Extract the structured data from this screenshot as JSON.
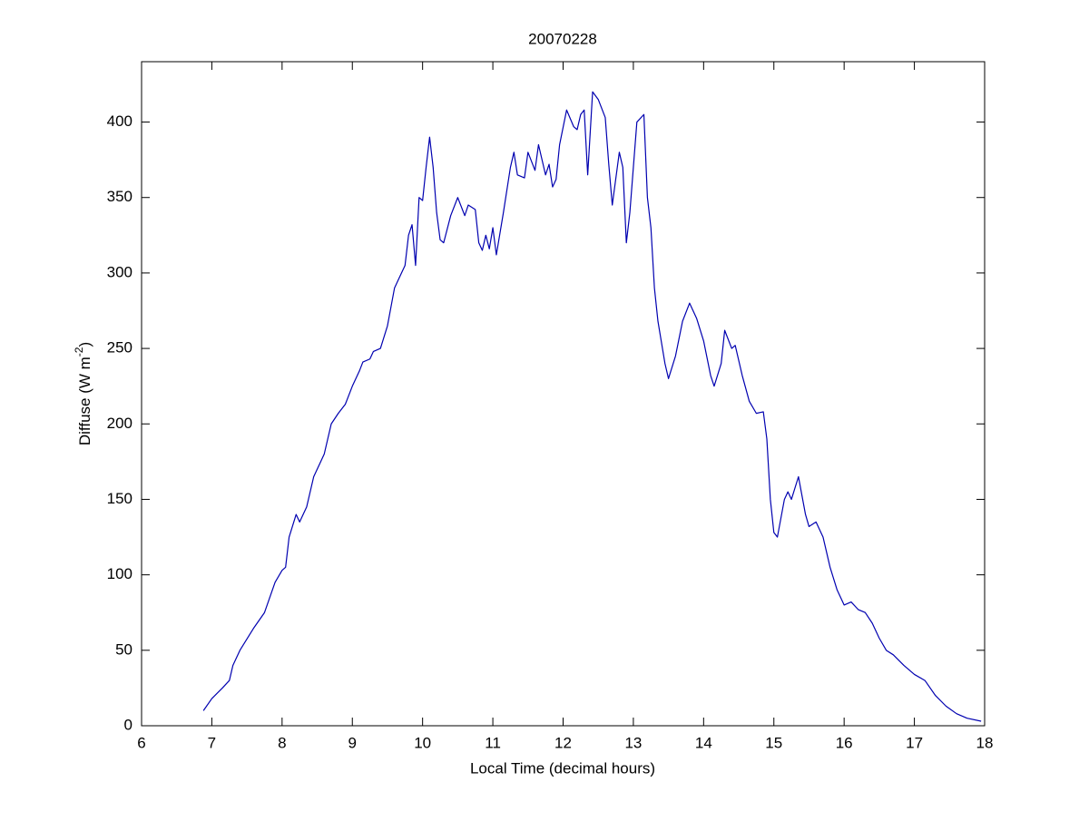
{
  "chart_data": {
    "type": "line",
    "title": "20070228",
    "xlabel": "Local Time (decimal hours)",
    "ylabel": {
      "text": "Diffuse (W m",
      "sup": "-2",
      "close": ")"
    },
    "xlim": [
      6,
      18
    ],
    "xticks": [
      6,
      7,
      8,
      9,
      10,
      11,
      12,
      13,
      14,
      15,
      16,
      17,
      18
    ],
    "ylim": [
      0,
      440
    ],
    "yticks": [
      0,
      50,
      100,
      150,
      200,
      250,
      300,
      350,
      400
    ],
    "grid": false,
    "series": [
      {
        "color": "#0000b0",
        "x": [
          6.88,
          7.0,
          7.15,
          7.25,
          7.3,
          7.4,
          7.6,
          7.75,
          7.9,
          8.0,
          8.05,
          8.1,
          8.2,
          8.25,
          8.35,
          8.45,
          8.6,
          8.7,
          8.8,
          8.9,
          9.0,
          9.1,
          9.15,
          9.25,
          9.3,
          9.4,
          9.5,
          9.6,
          9.7,
          9.75,
          9.8,
          9.85,
          9.9,
          9.95,
          10.0,
          10.05,
          10.1,
          10.15,
          10.2,
          10.25,
          10.3,
          10.4,
          10.5,
          10.6,
          10.65,
          10.75,
          10.8,
          10.85,
          10.9,
          10.95,
          11.0,
          11.05,
          11.15,
          11.25,
          11.3,
          11.35,
          11.45,
          11.5,
          11.6,
          11.65,
          11.75,
          11.8,
          11.85,
          11.9,
          11.95,
          12.05,
          12.15,
          12.2,
          12.25,
          12.3,
          12.35,
          12.42,
          12.5,
          12.6,
          12.65,
          12.7,
          12.8,
          12.85,
          12.9,
          12.95,
          13.0,
          13.05,
          13.15,
          13.2,
          13.25,
          13.3,
          13.35,
          13.45,
          13.5,
          13.6,
          13.7,
          13.8,
          13.9,
          14.0,
          14.1,
          14.15,
          14.25,
          14.3,
          14.4,
          14.45,
          14.55,
          14.65,
          14.75,
          14.85,
          14.9,
          14.95,
          15.0,
          15.05,
          15.15,
          15.2,
          15.25,
          15.35,
          15.45,
          15.5,
          15.6,
          15.7,
          15.8,
          15.9,
          16.0,
          16.1,
          16.2,
          16.3,
          16.4,
          16.5,
          16.6,
          16.7,
          16.85,
          17.0,
          17.15,
          17.3,
          17.45,
          17.6,
          17.75,
          17.95
        ],
        "values": [
          10,
          18,
          25,
          30,
          40,
          50,
          65,
          75,
          95,
          103,
          105,
          125,
          140,
          135,
          145,
          165,
          180,
          200,
          207,
          213,
          225,
          235,
          241,
          243,
          248,
          250,
          265,
          290,
          300,
          305,
          325,
          332,
          305,
          350,
          348,
          370,
          390,
          370,
          340,
          322,
          320,
          338,
          350,
          338,
          345,
          342,
          320,
          315,
          325,
          316,
          330,
          312,
          340,
          370,
          380,
          365,
          363,
          380,
          368,
          385,
          365,
          372,
          357,
          362,
          385,
          408,
          397,
          395,
          405,
          408,
          365,
          420,
          415,
          403,
          372,
          345,
          380,
          370,
          320,
          340,
          370,
          400,
          405,
          350,
          330,
          290,
          268,
          240,
          230,
          245,
          268,
          280,
          270,
          255,
          232,
          225,
          240,
          262,
          250,
          252,
          232,
          215,
          207,
          208,
          190,
          150,
          128,
          125,
          150,
          155,
          150,
          165,
          140,
          132,
          135,
          125,
          105,
          90,
          80,
          82,
          77,
          75,
          68,
          58,
          50,
          47,
          40,
          34,
          30,
          20,
          13,
          8,
          5,
          3
        ]
      }
    ]
  }
}
